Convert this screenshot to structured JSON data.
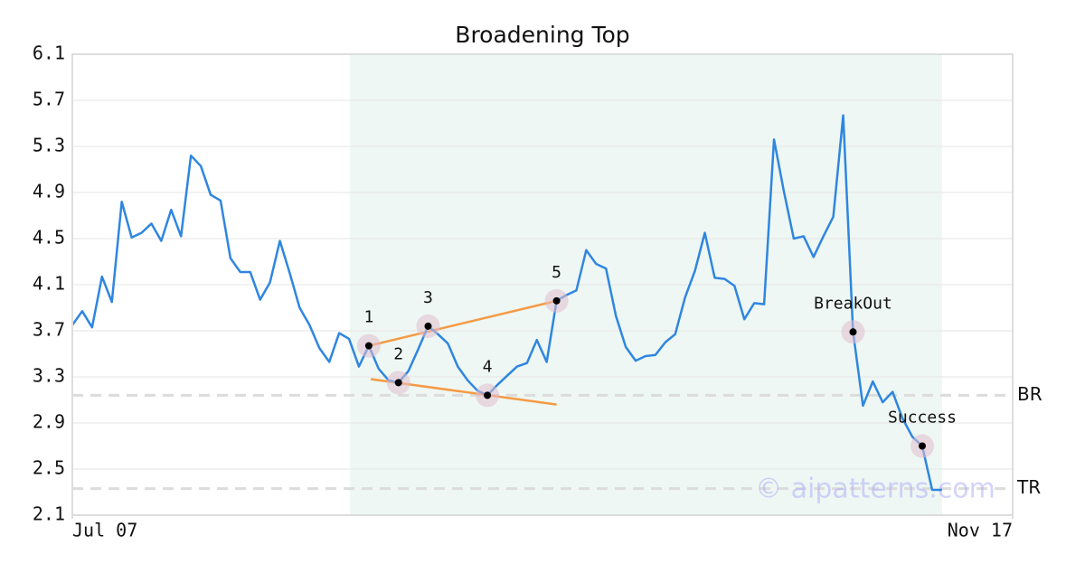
{
  "chart_data": {
    "type": "line",
    "title": "Broadening Top",
    "values": [
      3.75,
      3.87,
      3.73,
      4.17,
      3.95,
      4.82,
      4.51,
      4.55,
      4.63,
      4.48,
      4.75,
      4.52,
      5.22,
      5.13,
      4.88,
      4.83,
      4.33,
      4.21,
      4.21,
      3.97,
      4.12,
      4.48,
      4.2,
      3.9,
      3.75,
      3.55,
      3.43,
      3.68,
      3.63,
      3.39,
      3.57,
      3.37,
      3.27,
      3.25,
      3.35,
      3.54,
      3.74,
      3.67,
      3.59,
      3.39,
      3.27,
      3.18,
      3.14,
      3.23,
      3.31,
      3.39,
      3.42,
      3.62,
      3.43,
      3.96,
      4.01,
      4.05,
      4.4,
      4.28,
      4.24,
      3.83,
      3.56,
      3.44,
      3.48,
      3.49,
      3.6,
      3.67,
      3.99,
      4.22,
      4.55,
      4.16,
      4.15,
      4.09,
      3.8,
      3.94,
      3.93,
      5.36,
      4.91,
      4.5,
      4.52,
      4.34,
      4.52,
      4.69,
      5.57,
      3.69,
      3.05,
      3.26,
      3.08,
      3.17,
      2.94,
      2.78,
      2.7,
      2.32,
      2.32
    ],
    "color": "#2f86e0",
    "xlim": [
      0,
      95.15
    ],
    "xticks": [
      {
        "value": 0,
        "label": "Jul 07"
      },
      {
        "value": 95.15,
        "label": "Nov 17"
      }
    ],
    "ylim": [
      2.1,
      6.1
    ],
    "yticks": [
      2.1,
      2.5,
      2.9,
      3.3,
      3.7,
      4.1,
      4.5,
      4.9,
      5.3,
      5.7,
      6.1
    ],
    "grid": true,
    "shaded_range": [
      28.1,
      88
    ],
    "shade_color": "#eef7f3",
    "trend_lines": [
      {
        "x": [
          30,
          49
        ],
        "y": [
          3.57,
          3.96
        ],
        "color": "#f59a45"
      },
      {
        "x": [
          30.2,
          49
        ],
        "y": [
          3.28,
          3.06
        ],
        "color": "#f59a45"
      }
    ],
    "annotations": [
      {
        "label": "1",
        "x": 30,
        "y": 3.57
      },
      {
        "label": "2",
        "x": 33,
        "y": 3.25
      },
      {
        "label": "3",
        "x": 36,
        "y": 3.74
      },
      {
        "label": "4",
        "x": 42,
        "y": 3.14
      },
      {
        "label": "5",
        "x": 49,
        "y": 3.96
      },
      {
        "label": "BreakOut",
        "x": 79,
        "y": 3.69
      },
      {
        "label": "Success",
        "x": 86,
        "y": 2.7
      }
    ],
    "reference_lines": [
      {
        "label": "BR",
        "value": 3.14
      },
      {
        "label": "TR",
        "value": 2.33
      }
    ],
    "watermark": "© aipatterns.com"
  }
}
